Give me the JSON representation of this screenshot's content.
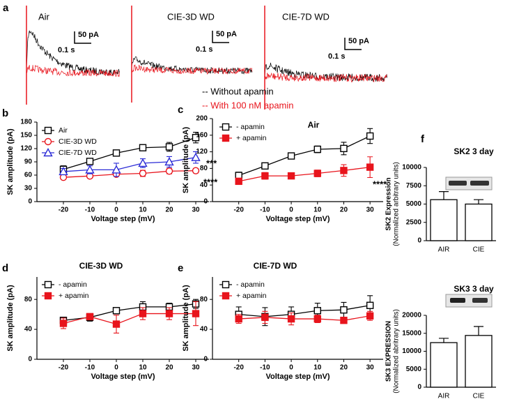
{
  "traces_panel": {
    "panel": "a",
    "traces": [
      {
        "title": "Air",
        "scale_y": "50 pA",
        "scale_x": "0.1 s"
      },
      {
        "title": "CIE-3D WD",
        "scale_y": "50 pA",
        "scale_x": "0.1 s"
      },
      {
        "title": "CIE-7D WD",
        "scale_y": "50 pA",
        "scale_x": "0.1 s"
      }
    ],
    "legend": [
      {
        "name": "-- Without apamin",
        "color": "#000000"
      },
      {
        "name": "-- With 100 nM apamin",
        "color": "#e8141c"
      }
    ]
  },
  "chart_data": [
    {
      "type": "line",
      "panel": "b",
      "xlabel": "Voltage step (mV)",
      "ylabel": "SK amplitude (pA)",
      "x": [
        -20,
        -10,
        0,
        10,
        20,
        30
      ],
      "xlim": [
        -30,
        35
      ],
      "xticks": [
        -20,
        -10,
        0,
        10,
        20,
        30
      ],
      "ylim": [
        0,
        180
      ],
      "yticks": [
        0,
        30,
        60,
        90,
        120,
        150,
        180
      ],
      "series": [
        {
          "name": "Air",
          "color": "#000000",
          "marker": "square-open",
          "values": [
            73,
            91,
            110,
            122,
            124,
            145
          ],
          "errors": [
            8,
            6,
            5,
            6,
            10,
            12
          ]
        },
        {
          "name": "CIE-3D WD",
          "color": "#e8141c",
          "marker": "circle-open",
          "values": [
            55,
            58,
            62,
            64,
            69,
            70
          ],
          "errors": [
            4,
            4,
            5,
            7,
            6,
            5
          ]
        },
        {
          "name": "CIE-7D WD",
          "color": "#2b2bd6",
          "marker": "triangle-open",
          "values": [
            68,
            72,
            72,
            87,
            90,
            100
          ],
          "errors": [
            7,
            9,
            15,
            10,
            12,
            13
          ]
        }
      ],
      "annotations": [
        "***",
        "****"
      ]
    },
    {
      "type": "line",
      "panel": "c",
      "title": "Air",
      "xlabel": "Voltage step (mV)",
      "ylabel": "SK amplitude (pA)",
      "x": [
        -20,
        -10,
        0,
        10,
        20,
        30
      ],
      "xlim": [
        -30,
        35
      ],
      "xticks": [
        -20,
        -10,
        0,
        10,
        20,
        30
      ],
      "ylim": [
        0,
        200
      ],
      "yticks": [
        0,
        40,
        80,
        120,
        160,
        200
      ],
      "series": [
        {
          "name": "- apamin",
          "color": "#000000",
          "marker": "square-open",
          "values": [
            63,
            86,
            110,
            126,
            128,
            158
          ],
          "errors": [
            8,
            6,
            5,
            8,
            15,
            18
          ]
        },
        {
          "name": "+ apamin",
          "color": "#e8141c",
          "marker": "square-filled",
          "values": [
            49,
            62,
            62,
            68,
            75,
            83
          ],
          "errors": [
            6,
            8,
            4,
            8,
            14,
            25
          ]
        }
      ],
      "annotations": [
        "****"
      ]
    },
    {
      "type": "line",
      "panel": "d",
      "title": "CIE-3D WD",
      "xlabel": "Voltage step (mV)",
      "ylabel": "SK amplitude (pA)",
      "x": [
        -20,
        -10,
        0,
        10,
        20,
        30
      ],
      "xlim": [
        -30,
        35
      ],
      "xticks": [
        -20,
        -10,
        0,
        10,
        20,
        30
      ],
      "ylim": [
        0,
        110
      ],
      "yticks": [
        0,
        40,
        80
      ],
      "series": [
        {
          "name": "- apamin",
          "color": "#000000",
          "marker": "square-open",
          "values": [
            52,
            56,
            65,
            70,
            70,
            74
          ],
          "errors": [
            4,
            5,
            4,
            7,
            5,
            6
          ]
        },
        {
          "name": "+ apamin",
          "color": "#e8141c",
          "marker": "square-filled",
          "values": [
            48,
            57,
            47,
            61,
            61,
            61
          ],
          "errors": [
            7,
            4,
            12,
            8,
            8,
            16
          ]
        }
      ]
    },
    {
      "type": "line",
      "panel": "e",
      "title": "CIE-7D WD",
      "xlabel": "Voltage step (mV)",
      "ylabel": "SK amplitude (pA)",
      "x": [
        -20,
        -10,
        0,
        10,
        20,
        30
      ],
      "xlim": [
        -30,
        35
      ],
      "xticks": [
        -20,
        -10,
        0,
        10,
        20,
        30
      ],
      "ylim": [
        0,
        110
      ],
      "yticks": [
        0,
        40,
        80
      ],
      "series": [
        {
          "name": "- apamin",
          "color": "#000000",
          "marker": "square-open",
          "values": [
            60,
            57,
            60,
            65,
            66,
            72
          ],
          "errors": [
            10,
            12,
            10,
            10,
            10,
            13
          ]
        },
        {
          "name": "+ apamin",
          "color": "#e8141c",
          "marker": "square-filled",
          "values": [
            54,
            56,
            54,
            54,
            52,
            58
          ],
          "errors": [
            6,
            8,
            8,
            5,
            4,
            6
          ]
        }
      ]
    },
    {
      "type": "bar",
      "panel": "f",
      "title": "SK2 3 day",
      "ylabel": "SK2 Expression",
      "ylabel_note": "(Normalized arbitrary units)",
      "categories": [
        "AIR",
        "CIE"
      ],
      "values": [
        5600,
        5000
      ],
      "errors": [
        1100,
        600
      ],
      "color": "#ffffff",
      "ylim": [
        0,
        10000
      ],
      "yticks": [
        0,
        2500,
        5000,
        7500,
        10000
      ]
    },
    {
      "type": "bar",
      "title": "SK3 3 day",
      "ylabel": "SK3 EXPRESSION",
      "ylabel_note": "(Normalized abritrary units)",
      "categories": [
        "AIR",
        "CIE"
      ],
      "values": [
        12400,
        14400
      ],
      "errors": [
        1200,
        2500
      ],
      "color": "#ffffff",
      "ylim": [
        0,
        20000
      ],
      "yticks": [
        0,
        5000,
        10000,
        15000,
        20000
      ]
    }
  ]
}
